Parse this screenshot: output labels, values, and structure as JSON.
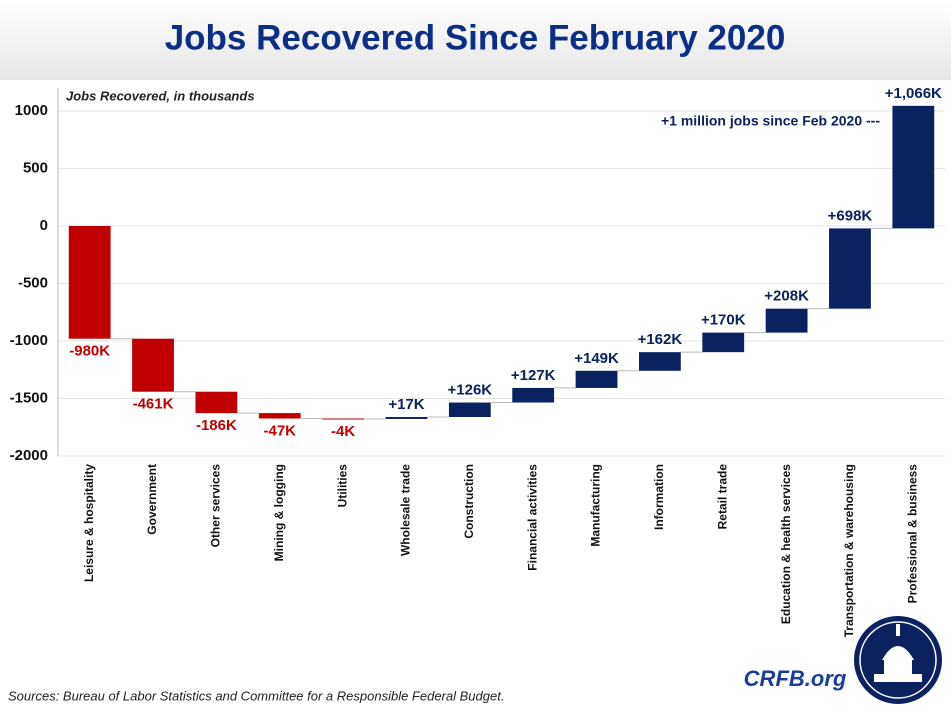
{
  "chart_data": {
    "type": "waterfall",
    "title": "Jobs Recovered Since February 2020",
    "y_axis_label": "Jobs Recovered, in thousands",
    "annotation": "+1 million jobs since Feb 2020 ---",
    "source": "Sources: Bureau of Labor Statistics and Committee for a Responsible Federal Budget.",
    "brand": "CRFB.org",
    "categories": [
      "Leisure & hospitality",
      "Government",
      "Other services",
      "Mining & logging",
      "Utilities",
      "Wholesale trade",
      "Construction",
      "Financial activities",
      "Manufacturing",
      "Information",
      "Retail trade",
      "Education & health services",
      "Transportation & warehousing",
      "Professional & business"
    ],
    "values": [
      -980,
      -461,
      -186,
      -47,
      -4,
      17,
      126,
      127,
      149,
      162,
      170,
      208,
      698,
      1066
    ],
    "value_labels": [
      "-980K",
      "-461K",
      "-186K",
      "-47K",
      "-4K",
      "+17K",
      "+126K",
      "+127K",
      "+149K",
      "+162K",
      "+170K",
      "+208K",
      "+698K",
      "+1,066K"
    ],
    "negative_color": "#c00000",
    "positive_color": "#0b2160",
    "ylim": [
      -2000,
      1200
    ],
    "yticks": [
      -2000,
      -1500,
      -1000,
      -500,
      0,
      500,
      1000
    ],
    "grid": true
  }
}
